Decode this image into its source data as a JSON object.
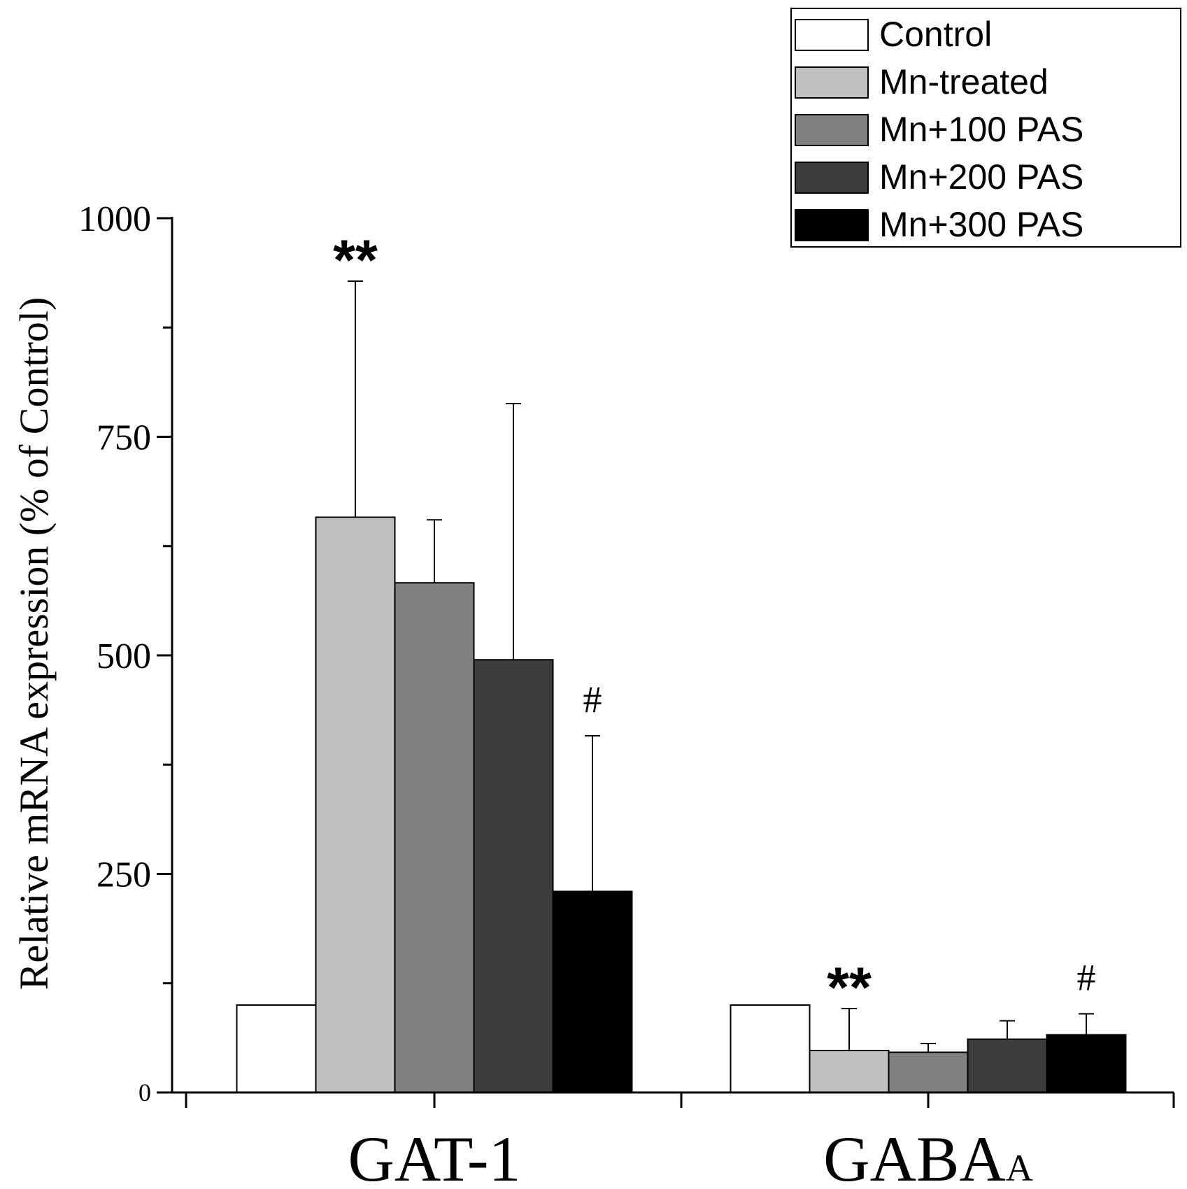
{
  "chart_data": {
    "type": "bar",
    "title": "",
    "xlabel": "",
    "ylabel": "Relative mRNA expression (% of Control)",
    "ylim": [
      0,
      1000
    ],
    "yticks": [
      0,
      250,
      500,
      750,
      1000
    ],
    "grid": false,
    "legend_position": "top-right",
    "categories": [
      {
        "main": "GAT-1",
        "sub": ""
      },
      {
        "main": "GABA",
        "sub": "A"
      }
    ],
    "series": [
      {
        "name": "Control",
        "color": "#ffffff",
        "values": [
          100,
          100
        ],
        "errors": [
          0,
          0
        ]
      },
      {
        "name": "Mn-treated",
        "color": "#c0c0c0",
        "values": [
          658,
          48
        ],
        "errors": [
          270,
          48
        ]
      },
      {
        "name": "Mn+100 PAS",
        "color": "#808080",
        "values": [
          583,
          46
        ],
        "errors": [
          72,
          10
        ]
      },
      {
        "name": "Mn+200 PAS",
        "color": "#3c3c3c",
        "values": [
          495,
          61
        ],
        "errors": [
          293,
          21
        ]
      },
      {
        "name": "Mn+300 PAS",
        "color": "#000000",
        "values": [
          230,
          66
        ],
        "errors": [
          178,
          24
        ]
      }
    ],
    "annotations": [
      {
        "category_index": 0,
        "series_index": 1,
        "text": "**"
      },
      {
        "category_index": 0,
        "series_index": 4,
        "text": "#"
      },
      {
        "category_index": 1,
        "series_index": 1,
        "text": "**"
      },
      {
        "category_index": 1,
        "series_index": 4,
        "text": "#"
      }
    ]
  }
}
